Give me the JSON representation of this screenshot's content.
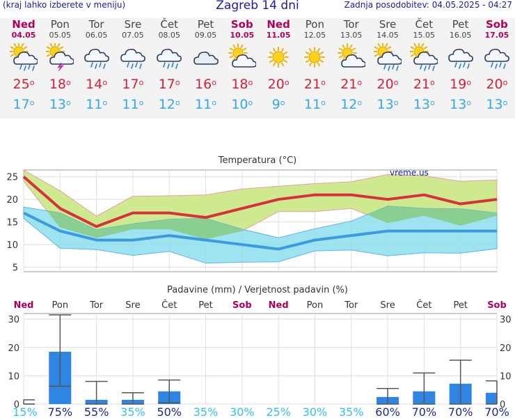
{
  "header": {
    "left_note": "(kraj lahko izberete v meniju)",
    "title": "Zagreb 14 dni",
    "updated": "Zadnja posodobitev: 04.05.2025 - 04:27"
  },
  "colors": {
    "weekday_text": "#444444",
    "weekend_text": "#b0005e",
    "tmax": "#d61f3a",
    "tmin": "#33a8e8",
    "max_band": "#cde88a",
    "min_band": "#8ee0ee",
    "overlap_band": "#88cc88",
    "max_line": "#d6323c",
    "min_line": "#3b9be0",
    "bar": "#2f86e2",
    "prob_high": "#1a2a8a",
    "prob_low": "#33c0ee"
  },
  "days": [
    {
      "name": "Ned",
      "date": "04.05",
      "weekend": true,
      "icon": "sun-cloud-rain-icon",
      "tmax": "25",
      "tmin": "17"
    },
    {
      "name": "Pon",
      "date": "05.05",
      "weekend": false,
      "icon": "sun-cloud-lightning-icon",
      "tmax": "18",
      "tmin": "13"
    },
    {
      "name": "Tor",
      "date": "06.05",
      "weekend": false,
      "icon": "cloud-rain-icon",
      "tmax": "14",
      "tmin": "11"
    },
    {
      "name": "Sre",
      "date": "07.05",
      "weekend": false,
      "icon": "cloud-rain-icon",
      "tmax": "17",
      "tmin": "11"
    },
    {
      "name": "Čet",
      "date": "08.05",
      "weekend": false,
      "icon": "cloud-rain-icon",
      "tmax": "17",
      "tmin": "12"
    },
    {
      "name": "Pet",
      "date": "09.05",
      "weekend": false,
      "icon": "cloud-icon",
      "tmax": "16",
      "tmin": "11"
    },
    {
      "name": "Sob",
      "date": "10.05",
      "weekend": true,
      "icon": "sun-cloud-icon",
      "tmax": "18",
      "tmin": "10"
    },
    {
      "name": "Ned",
      "date": "11.05",
      "weekend": true,
      "icon": "sun-icon",
      "tmax": "20",
      "tmin": "9"
    },
    {
      "name": "Pon",
      "date": "12.05",
      "weekend": false,
      "icon": "sun-icon",
      "tmax": "21",
      "tmin": "11"
    },
    {
      "name": "Tor",
      "date": "13.05",
      "weekend": false,
      "icon": "sun-cloud-icon",
      "tmax": "21",
      "tmin": "12"
    },
    {
      "name": "Sre",
      "date": "14.05",
      "weekend": false,
      "icon": "sun-cloud-rain-icon",
      "tmax": "20",
      "tmin": "13"
    },
    {
      "name": "Čet",
      "date": "15.05",
      "weekend": false,
      "icon": "sun-cloud-rain-icon",
      "tmax": "21",
      "tmin": "13"
    },
    {
      "name": "Pet",
      "date": "16.05",
      "weekend": false,
      "icon": "cloud-rain-icon",
      "tmax": "19",
      "tmin": "13"
    },
    {
      "name": "Sob",
      "date": "17.05",
      "weekend": true,
      "icon": "cloud-rain-icon",
      "tmax": "20",
      "tmin": "13"
    }
  ],
  "chart_data": [
    {
      "type": "area",
      "title": "Temperatura (°C)",
      "watermark": "vreme.us",
      "ylim": [
        4,
        26.5
      ],
      "yticks": [
        5,
        10,
        15,
        20,
        25
      ],
      "grid": true,
      "categories": [
        "Ned",
        "Pon",
        "Tor",
        "Sre",
        "Čet",
        "Pet",
        "Sob",
        "Ned",
        "Pon",
        "Tor",
        "Sre",
        "Čet",
        "Pet",
        "Sob"
      ],
      "series": [
        {
          "values": [
            25,
            18,
            14,
            17,
            17,
            16,
            18,
            20,
            21,
            21,
            20,
            21,
            19,
            20
          ]
        },
        {
          "values": [
            17,
            13,
            11,
            11,
            12,
            11,
            10,
            9,
            11,
            12,
            13,
            13,
            13,
            13
          ]
        }
      ],
      "bands": {
        "max_high": [
          26.5,
          21.9,
          16.3,
          20.7,
          20.8,
          21,
          22.3,
          22.9,
          23.5,
          23.9,
          25.5,
          25.2,
          24,
          24.3
        ],
        "max_low": [
          24,
          13.8,
          11.5,
          13.4,
          13.4,
          11.2,
          13,
          17.3,
          17.3,
          18,
          14.8,
          16.4,
          14.2,
          16.4
        ],
        "min_high": [
          18.3,
          17,
          13.3,
          14.6,
          15.6,
          15.8,
          13.4,
          11.5,
          13.5,
          15.2,
          18.5,
          18,
          17.9,
          17
        ],
        "min_low": [
          15.8,
          9.2,
          8.9,
          7.6,
          8.5,
          5.9,
          6.1,
          6.2,
          8.6,
          8.8,
          7.5,
          8.2,
          8.1,
          9.1
        ]
      }
    },
    {
      "type": "bar",
      "title": "Padavine (mm) / Verjetnost padavin (%)",
      "ylim": [
        0,
        32
      ],
      "yticks": [
        0,
        10,
        20,
        30
      ],
      "grid": true,
      "categories": [
        "Ned",
        "Pon",
        "Tor",
        "Sre",
        "Čet",
        "Pet",
        "Sob",
        "Ned",
        "Pon",
        "Tor",
        "Sre",
        "Čet",
        "Pet",
        "Sob"
      ],
      "values": [
        0.2,
        18.5,
        1.5,
        1.5,
        4.5,
        0,
        0,
        0,
        0,
        0,
        2.5,
        4.5,
        7.2,
        4
      ],
      "error_low": [
        0,
        6.3,
        0,
        0,
        0.5,
        0,
        0,
        0,
        0,
        0,
        0,
        0,
        0,
        0
      ],
      "error_high": [
        1.5,
        31.5,
        8,
        4,
        8.5,
        0,
        0,
        0,
        0,
        0,
        5.5,
        11,
        15.5,
        8.2
      ],
      "probability": [
        "15%",
        "75%",
        "55%",
        "35%",
        "50%",
        "35%",
        "30%",
        "25%",
        "30%",
        "35%",
        "60%",
        "70%",
        "70%",
        "70%"
      ]
    }
  ]
}
